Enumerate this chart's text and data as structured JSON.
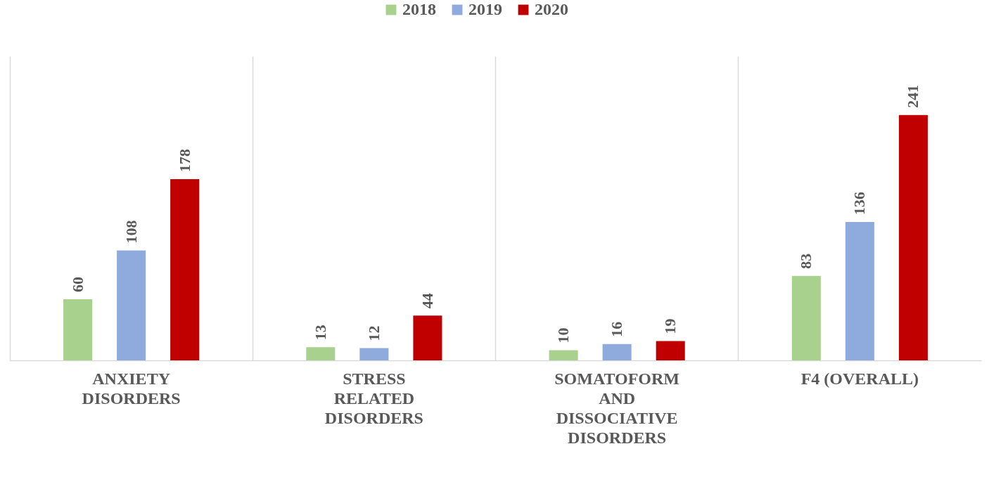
{
  "chart_data": {
    "type": "bar",
    "categories": [
      "ANXIETY DISORDERS",
      "STRESS RELATED DISORDERS",
      "SOMATOFORM AND DISSOCIATIVE DISORDERS",
      "F4 (OVERALL)"
    ],
    "series": [
      {
        "name": "2018",
        "color": "#a9d18e",
        "values": [
          60,
          13,
          10,
          83
        ]
      },
      {
        "name": "2019",
        "color": "#8faadc",
        "values": [
          108,
          12,
          16,
          136
        ]
      },
      {
        "name": "2020",
        "color": "#c00000",
        "values": [
          178,
          44,
          19,
          241
        ]
      }
    ],
    "data_labels": true,
    "legend": "top",
    "grid": "x"
  }
}
